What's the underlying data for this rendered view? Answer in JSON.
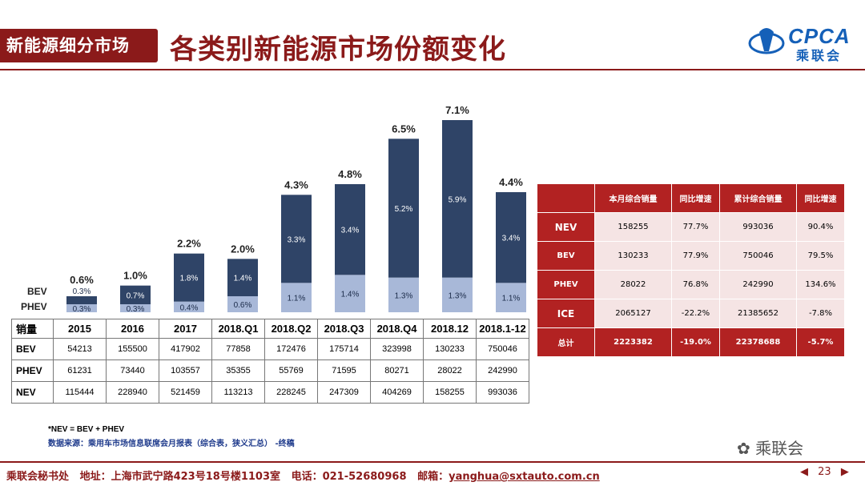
{
  "header": {
    "tag": "新能源细分市场",
    "title": "各类别新能源市场份额变化",
    "logo_text": "CPCA",
    "logo_sub": "乘联会",
    "brand_color": "#8b1a1a"
  },
  "chart_data": {
    "type": "bar",
    "stacked": true,
    "categories": [
      "2015",
      "2016",
      "2017",
      "2018.Q1",
      "2018.Q2",
      "2018.Q3",
      "2018.Q4",
      "2018.12",
      "2018.1-12"
    ],
    "series": [
      {
        "name": "PHEV",
        "values": [
          0.3,
          0.3,
          0.4,
          0.6,
          1.1,
          1.4,
          1.3,
          1.3,
          1.1
        ],
        "labels": [
          "0.3%",
          "0.3%",
          "0.4%",
          "0.6%",
          "1.1%",
          "1.4%",
          "1.3%",
          "1.3%",
          "1.1%"
        ],
        "color": "#a8b8d8"
      },
      {
        "name": "BEV",
        "values": [
          0.3,
          0.7,
          1.8,
          1.4,
          3.3,
          3.4,
          5.2,
          5.9,
          3.4
        ],
        "labels": [
          "0.3%",
          "0.7%",
          "1.8%",
          "1.4%",
          "3.3%",
          "3.4%",
          "5.2%",
          "5.9%",
          "3.4%"
        ],
        "color": "#2f4467"
      }
    ],
    "totals": [
      "0.6%",
      "1.0%",
      "2.2%",
      "2.0%",
      "4.3%",
      "4.8%",
      "6.5%",
      "7.1%",
      "4.4%"
    ],
    "legend": [
      "BEV",
      "PHEV"
    ],
    "ylim": [
      0,
      7.5
    ],
    "title": "",
    "xlabel": "",
    "ylabel": ""
  },
  "volume_table": {
    "corner": "销量",
    "rows": [
      {
        "label": "BEV",
        "values": [
          "54213",
          "155500",
          "417902",
          "77858",
          "172476",
          "175714",
          "323998",
          "130233",
          "750046"
        ]
      },
      {
        "label": "PHEV",
        "values": [
          "61231",
          "73440",
          "103557",
          "35355",
          "55769",
          "71595",
          "80271",
          "28022",
          "242990"
        ]
      },
      {
        "label": "NEV",
        "values": [
          "115444",
          "228940",
          "521459",
          "113213",
          "228245",
          "247309",
          "404269",
          "158255",
          "993036"
        ]
      }
    ]
  },
  "summary_table": {
    "headers": [
      "",
      "本月综合销量",
      "同比增速",
      "累计综合销量",
      "同比增速"
    ],
    "rows": [
      {
        "label": "NEV",
        "values": [
          "158255",
          "77.7%",
          "993036",
          "90.4%"
        ]
      },
      {
        "label": "BEV",
        "values": [
          "130233",
          "77.9%",
          "750046",
          "79.5%"
        ]
      },
      {
        "label": "PHEV",
        "values": [
          "28022",
          "76.8%",
          "242990",
          "134.6%"
        ]
      },
      {
        "label": "ICE",
        "values": [
          "2065127",
          "-22.2%",
          "21385652",
          "-7.8%"
        ]
      },
      {
        "label": "总计",
        "values": [
          "2223382",
          "-19.0%",
          "22378688",
          "-5.7%"
        ]
      }
    ]
  },
  "notes": {
    "formula": "*NEV = BEV + PHEV",
    "source": "数据来源：乘用车市场信息联席会月报表（综合表，狭义汇总） -终稿"
  },
  "watermark": "乘联会",
  "footer": {
    "org": "乘联会秘书处",
    "address": "地址：上海市武宁路423号18号楼1103室",
    "phone": "电话：021-52680968",
    "email_label": "邮箱：",
    "email": "yanghua@sxtauto.com.cn",
    "page_prev": "◀",
    "page_num": "23",
    "page_next": "▶"
  }
}
